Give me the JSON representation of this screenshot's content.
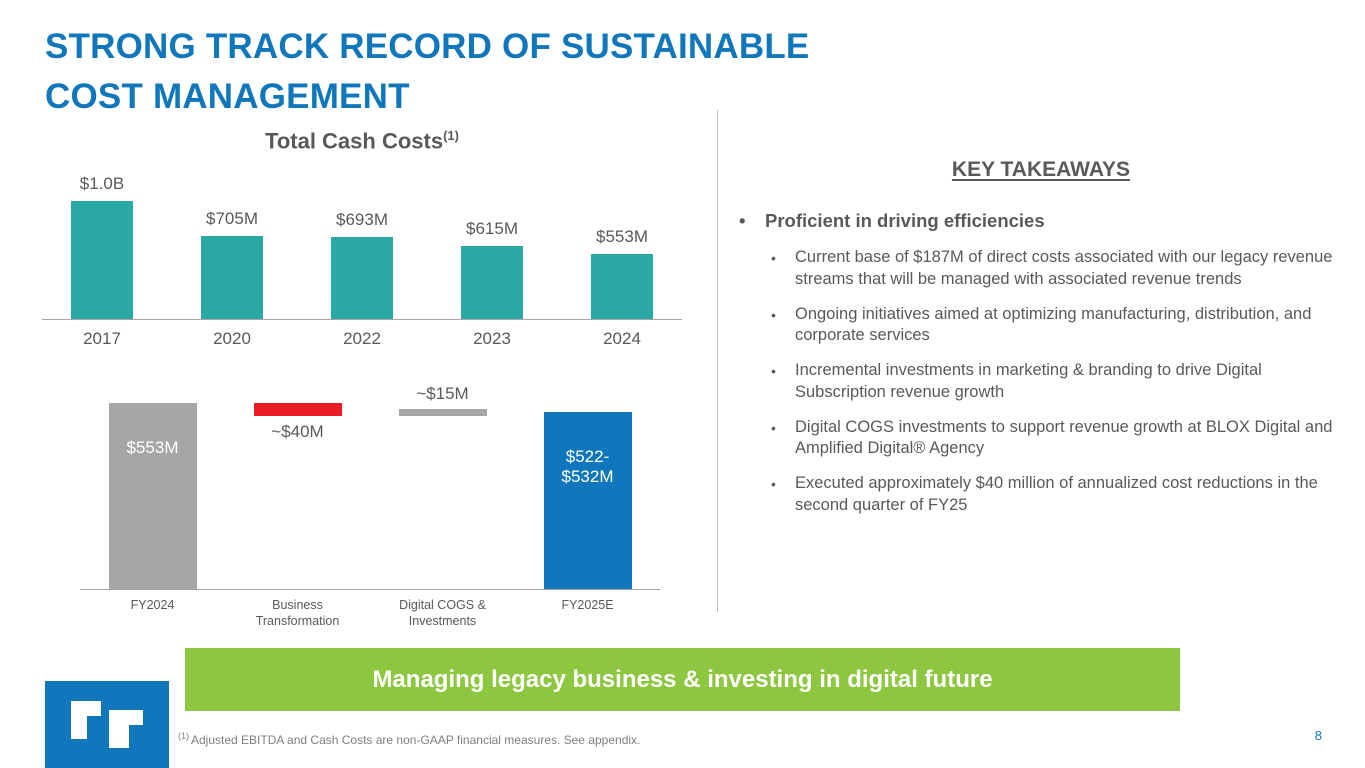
{
  "slide": {
    "title_line1": "STRONG TRACK RECORD OF SUSTAINABLE",
    "title_line2": "COST MANAGEMENT",
    "banner": "Managing legacy business & investing in digital future",
    "footnote_marker": "(1)",
    "footnote_text": "Adjusted EBITDA and Cash Costs are non-GAAP financial measures. See appendix.",
    "page_number": "8"
  },
  "key_takeaways": {
    "heading": "KEY TAKEAWAYS",
    "bullet_char": "•",
    "main_bullet": "Proficient in driving efficiencies",
    "sub_bullets": [
      "Current base of $187M of direct costs associated with our legacy revenue streams that will be managed with associated revenue trends",
      "Ongoing initiatives aimed at optimizing manufacturing, distribution, and corporate services",
      "Incremental investments in marketing & branding to drive Digital Subscription revenue growth",
      "Digital COGS investments to support revenue growth at BLOX Digital and Amplified Digital® Agency",
      "Executed approximately $40 million of annualized cost reductions in the second quarter of FY25"
    ]
  },
  "chart_data": [
    {
      "type": "bar",
      "title": "Total Cash Costs",
      "title_superscript": "(1)",
      "categories": [
        "2017",
        "2020",
        "2022",
        "2023",
        "2024"
      ],
      "values": [
        1000,
        705,
        693,
        615,
        553
      ],
      "value_labels": [
        "$1.0B",
        "$705M",
        "$693M",
        "$615M",
        "$553M"
      ],
      "unit": "$M",
      "ylim": [
        0,
        1100
      ],
      "bar_color": "#2AA9A4",
      "axis_color": "#A6A6A6",
      "grid": false,
      "legend": "none"
    },
    {
      "type": "bar",
      "subtype": "waterfall",
      "title": "",
      "categories": [
        "FY2024",
        "Business\nTransformation",
        "Digital COGS &\nInvestments",
        "FY2025E"
      ],
      "bars": [
        {
          "label": "$553M",
          "start": 0,
          "end": 553,
          "color": "#A6A6A6",
          "label_pos": "inside",
          "label_color": "#FFFFFF"
        },
        {
          "label": "~$40M",
          "start": 513,
          "end": 553,
          "color": "#EC1C24",
          "label_pos": "below",
          "label_color": "#595959"
        },
        {
          "label": "~$15M",
          "start": 513,
          "end": 528,
          "color": "#A6A6A6",
          "label_pos": "above",
          "label_color": "#595959"
        },
        {
          "label": "$522-\n$532M",
          "start": 0,
          "end": 527,
          "color": "#1077BC",
          "label_pos": "inside",
          "label_color": "#FFFFFF"
        }
      ],
      "ylim": [
        0,
        600
      ],
      "axis_color": "#A6A6A6",
      "grid": false,
      "legend": "none"
    }
  ],
  "colors": {
    "title_blue": "#1077BC",
    "teal": "#2AA9A4",
    "gray_bar": "#A6A6A6",
    "red": "#EC1C24",
    "blue_bar": "#1077BC",
    "banner_green": "#8DC63F",
    "body_text": "#595959"
  }
}
